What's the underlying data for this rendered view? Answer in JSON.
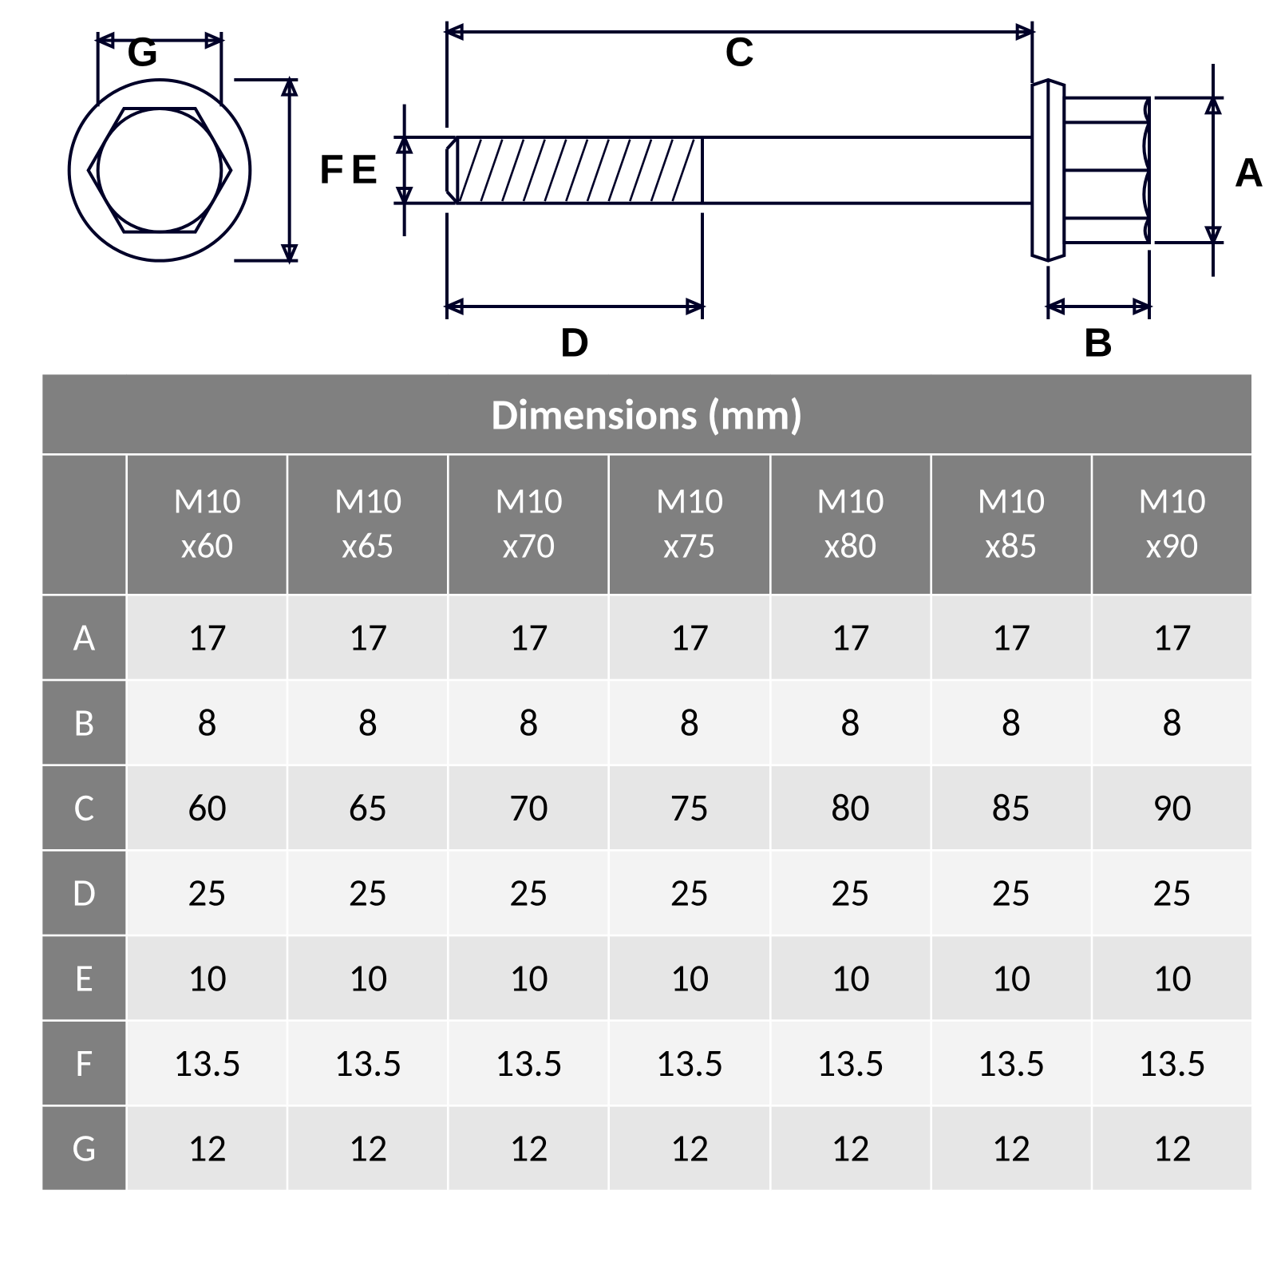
{
  "diagram": {
    "stroke": "#000028",
    "stroke_width": 3,
    "label_font": "bold 38px Arial",
    "labels": {
      "A": "A",
      "B": "B",
      "C": "C",
      "D": "D",
      "E": "E",
      "F": "F",
      "G": "G"
    }
  },
  "table": {
    "title": "Dimensions (mm)",
    "title_bg": "#808080",
    "title_color": "#ffffff",
    "header_bg": "#808080",
    "header_color": "#ffffff",
    "row_odd_bg": "#e6e6e6",
    "row_even_bg": "#f3f3f3",
    "border_color": "#ffffff",
    "cell_fontsize": 36,
    "columns": [
      "M10 x60",
      "M10 x65",
      "M10 x70",
      "M10 x75",
      "M10 x80",
      "M10 x85",
      "M10 x90"
    ],
    "rows": [
      {
        "label": "A",
        "values": [
          "17",
          "17",
          "17",
          "17",
          "17",
          "17",
          "17"
        ]
      },
      {
        "label": "B",
        "values": [
          "8",
          "8",
          "8",
          "8",
          "8",
          "8",
          "8"
        ]
      },
      {
        "label": "C",
        "values": [
          "60",
          "65",
          "70",
          "75",
          "80",
          "85",
          "90"
        ]
      },
      {
        "label": "D",
        "values": [
          "25",
          "25",
          "25",
          "25",
          "25",
          "25",
          "25"
        ]
      },
      {
        "label": "E",
        "values": [
          "10",
          "10",
          "10",
          "10",
          "10",
          "10",
          "10"
        ]
      },
      {
        "label": "F",
        "values": [
          "13.5",
          "13.5",
          "13.5",
          "13.5",
          "13.5",
          "13.5",
          "13.5"
        ]
      },
      {
        "label": "G",
        "values": [
          "12",
          "12",
          "12",
          "12",
          "12",
          "12",
          "12"
        ]
      }
    ]
  }
}
